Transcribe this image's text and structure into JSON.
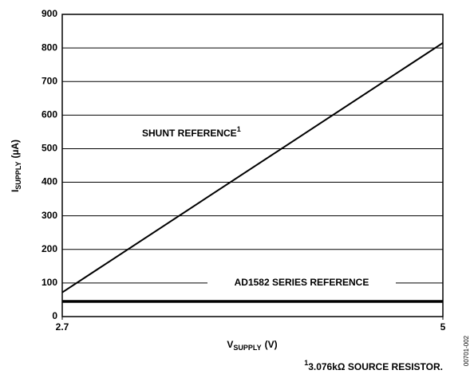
{
  "chart_data": {
    "type": "line",
    "x": [
      2.7,
      5
    ],
    "xlim": [
      2.7,
      5
    ],
    "xticks": [
      2.7,
      5
    ],
    "ylim": [
      0,
      900
    ],
    "yticks": [
      0,
      100,
      200,
      300,
      400,
      500,
      600,
      700,
      800,
      900
    ],
    "grid": true,
    "series": [
      {
        "name": "SHUNT REFERENCE",
        "name_superscript": "1",
        "color": "#000000",
        "values": [
          72,
          815
        ]
      },
      {
        "name": "AD1582 SERIES REFERENCE",
        "color": "#000000",
        "values": [
          45,
          45
        ]
      }
    ],
    "y_label": {
      "main": "I",
      "subscript": "SUPPLY",
      "unit": "(µA)"
    },
    "x_label": {
      "main": "V",
      "subscript": "SUPPLY",
      "unit": "(V)"
    },
    "footnote": {
      "marker": "1",
      "text": "3.076kΩ SOURCE RESISTOR."
    },
    "figure_id": "00701-002"
  }
}
